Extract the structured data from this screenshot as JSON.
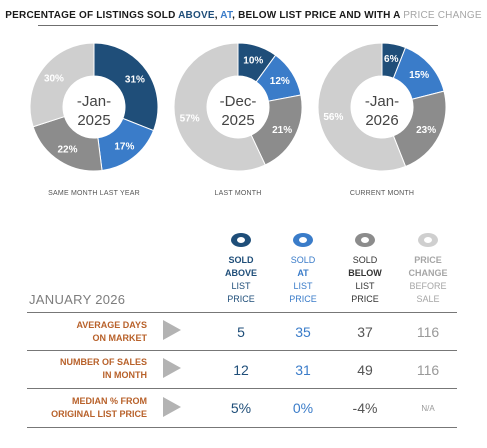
{
  "header": {
    "prefix": "PERCENTAGE OF LISTINGS SOLD ",
    "above": "ABOVE",
    "sep1": ", ",
    "at": "AT",
    "sep2": ", ",
    "below": "BELOW LIST PRICE AND WITH A ",
    "change": "PRICE CHANGE"
  },
  "colors": {
    "above": "#1f4e79",
    "at": "#3a7cc9",
    "below": "#8c8c8c",
    "change": "#cfcfcf",
    "label_dark": "#1f4e79",
    "label_light": "#ffffff",
    "row_label": "#b8612a"
  },
  "chart_data": [
    {
      "type": "pie",
      "donut": true,
      "center_month": "-Jan-",
      "center_year": "2025",
      "caption": "SAME MONTH LAST YEAR",
      "slices": [
        {
          "name": "Sold Above",
          "value": 31,
          "label": "31%"
        },
        {
          "name": "Sold At",
          "value": 17,
          "label": "17%"
        },
        {
          "name": "Sold Below",
          "value": 22,
          "label": "22%"
        },
        {
          "name": "Price Change",
          "value": 30,
          "label": "30%"
        }
      ]
    },
    {
      "type": "pie",
      "donut": true,
      "center_month": "-Dec-",
      "center_year": "2025",
      "caption": "LAST MONTH",
      "slices": [
        {
          "name": "Sold Above",
          "value": 10,
          "label": "10%"
        },
        {
          "name": "Sold At",
          "value": 12,
          "label": "12%"
        },
        {
          "name": "Sold Below",
          "value": 21,
          "label": "21%"
        },
        {
          "name": "Price Change",
          "value": 57,
          "label": "57%"
        }
      ]
    },
    {
      "type": "pie",
      "donut": true,
      "center_month": "-Jan-",
      "center_year": "2026",
      "caption": "CURRENT MONTH",
      "slices": [
        {
          "name": "Sold Above",
          "value": 6,
          "label": "6%"
        },
        {
          "name": "Sold At",
          "value": 15,
          "label": "15%"
        },
        {
          "name": "Sold Below",
          "value": 23,
          "label": "23%"
        },
        {
          "name": "Price Change",
          "value": 56,
          "label": "56%"
        }
      ]
    }
  ],
  "legend": [
    {
      "line1": "SOLD",
      "line2": "ABOVE",
      "line3": "LIST",
      "line4": "PRICE",
      "color": "#1f4e79",
      "text_color": "#1f4e79"
    },
    {
      "line1": "SOLD",
      "line2": "AT",
      "line3": "LIST",
      "line4": "PRICE",
      "color": "#3a7cc9",
      "text_color": "#3a7cc9"
    },
    {
      "line1": "SOLD",
      "line2": "BELOW",
      "line3": "LIST",
      "line4": "PRICE",
      "color": "#8c8c8c",
      "text_color": "#333333"
    },
    {
      "line1": "PRICE",
      "line2": "CHANGE",
      "line3": "BEFORE",
      "line4": "SALE",
      "color": "#cfcfcf",
      "text_color": "#a6a6a6"
    }
  ],
  "table": {
    "title": "JANUARY 2026",
    "rows": [
      {
        "label1": "AVERAGE DAYS",
        "label2": "ON MARKET",
        "values": [
          "5",
          "35",
          "37",
          "116"
        ]
      },
      {
        "label1": "NUMBER OF SALES",
        "label2": "IN MONTH",
        "values": [
          "12",
          "31",
          "49",
          "116"
        ]
      },
      {
        "label1": "MEDIAN % FROM",
        "label2": "ORIGINAL LIST PRICE",
        "values": [
          "5%",
          "0%",
          "-4%",
          "N/A"
        ]
      }
    ]
  }
}
